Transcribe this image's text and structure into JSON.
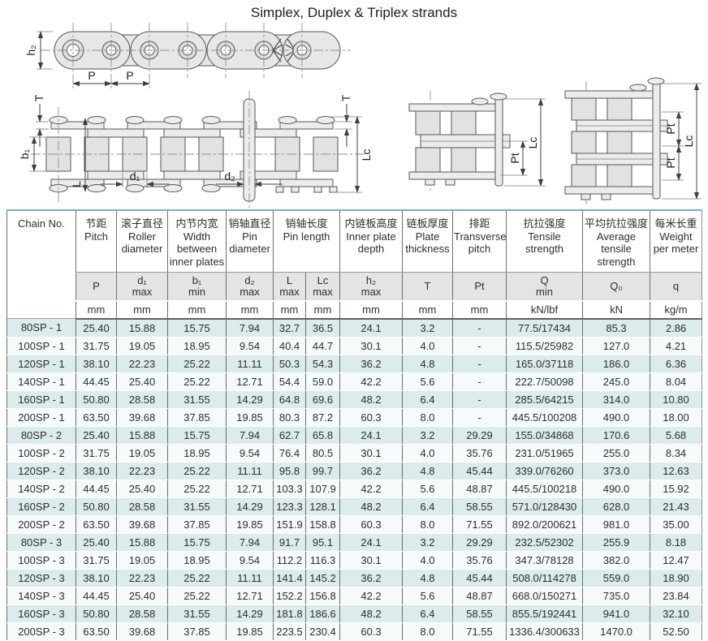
{
  "page": {
    "title": "Simplex, Duplex & Triplex strands"
  },
  "drawings": {
    "side_view": {
      "h2": "h₂",
      "p1": "P",
      "p2": "P"
    },
    "plan_view": {
      "t_left": "T",
      "t_right": "T",
      "b1": "b₁",
      "l": "L",
      "d1": "d₁",
      "d2": "d₂",
      "lc": "Lc"
    },
    "duplex_view": {
      "pt": "Pt",
      "lc": "Lc"
    },
    "triplex_view": {
      "pt1": "Pt",
      "pt2": "Pt",
      "lc": "Lc"
    }
  },
  "table": {
    "corner_label": "Chain No.",
    "col_headers": [
      {
        "cn": "节距",
        "en": "Pitch",
        "sym": "P",
        "qual": "",
        "unit": "mm"
      },
      {
        "cn": "滚子直径",
        "en": "Roller diameter",
        "sym": "d₁",
        "qual": "max",
        "unit": "mm"
      },
      {
        "cn": "内节内宽",
        "en": "Width between inner plates",
        "sym": "b₁",
        "qual": "min",
        "unit": "mm"
      },
      {
        "cn": "销轴直径",
        "en": "Pin diameter",
        "sym": "d₂",
        "qual": "max",
        "unit": "mm"
      },
      {
        "cn": "销轴长度",
        "en": "Pin length",
        "sym": "L",
        "qual": "max",
        "unit": "mm",
        "sym2": "Lc",
        "qual2": "max",
        "unit2": "mm"
      },
      {
        "cn": "内链板高度",
        "en": "Inner plate depth",
        "sym": "h₂",
        "qual": "max",
        "unit": "mm"
      },
      {
        "cn": "链板厚度",
        "en": "Plate thickness",
        "sym": "T",
        "qual": "",
        "unit": "mm"
      },
      {
        "cn": "排距",
        "en": "Transverse pitch",
        "sym": "Pt",
        "qual": "",
        "unit": "mm"
      },
      {
        "cn": "抗拉强度",
        "en": "Tensile strength",
        "sym": "Q",
        "qual": "min",
        "unit": "kN/lbf"
      },
      {
        "cn": "平均抗拉强度",
        "en": "Average tensile strength",
        "sym": "Q₀",
        "qual": "",
        "unit": "kN"
      },
      {
        "cn": "每米长重",
        "en": "Weight per meter",
        "sym": "q",
        "qual": "",
        "unit": "kg/m"
      }
    ],
    "rows": [
      [
        "80SP - 1",
        "25.40",
        "15.88",
        "15.75",
        "7.94",
        "32.7",
        "36.5",
        "24.1",
        "3.2",
        "-",
        "77.5/17434",
        "85.3",
        "2.86"
      ],
      [
        "100SP - 1",
        "31.75",
        "19.05",
        "18.95",
        "9.54",
        "40.4",
        "44.7",
        "30.1",
        "4.0",
        "-",
        "115.5/25982",
        "127.0",
        "4.21"
      ],
      [
        "120SP - 1",
        "38.10",
        "22.23",
        "25.22",
        "11.11",
        "50.3",
        "54.3",
        "36.2",
        "4.8",
        "-",
        "165.0/37118",
        "186.0",
        "6.36"
      ],
      [
        "140SP - 1",
        "44.45",
        "25.40",
        "25.22",
        "12.71",
        "54.4",
        "59.0",
        "42.2",
        "5.6",
        "-",
        "222.7/50098",
        "245.0",
        "8.04"
      ],
      [
        "160SP - 1",
        "50.80",
        "28.58",
        "31.55",
        "14.29",
        "64.8",
        "69.6",
        "48.2",
        "6.4",
        "-",
        "285.5/64215",
        "314.0",
        "10.80"
      ],
      [
        "200SP - 1",
        "63.50",
        "39.68",
        "37.85",
        "19.85",
        "80.3",
        "87.2",
        "60.3",
        "8.0",
        "-",
        "445.5/100208",
        "490.0",
        "18.00"
      ],
      [
        "80SP - 2",
        "25.40",
        "15.88",
        "15.75",
        "7.94",
        "62.7",
        "65.8",
        "24.1",
        "3.2",
        "29.29",
        "155.0/34868",
        "170.6",
        "5.68"
      ],
      [
        "100SP - 2",
        "31.75",
        "19.05",
        "18.95",
        "9.54",
        "76.4",
        "80.5",
        "30.1",
        "4.0",
        "35.76",
        "231.0/51965",
        "255.0",
        "8.34"
      ],
      [
        "120SP - 2",
        "38.10",
        "22.23",
        "25.22",
        "11.11",
        "95.8",
        "99.7",
        "36.2",
        "4.8",
        "45.44",
        "339.0/76260",
        "373.0",
        "12.63"
      ],
      [
        "140SP - 2",
        "44.45",
        "25.40",
        "25.22",
        "12.71",
        "103.3",
        "107.9",
        "42.2",
        "5.6",
        "48.87",
        "445.5/100218",
        "490.0",
        "15.92"
      ],
      [
        "160SP - 2",
        "50.80",
        "28.58",
        "31.55",
        "14.29",
        "123.3",
        "128.1",
        "48.2",
        "6.4",
        "58.55",
        "571.0/128430",
        "628.0",
        "21.43"
      ],
      [
        "200SP - 2",
        "63.50",
        "39.68",
        "37.85",
        "19.85",
        "151.9",
        "158.8",
        "60.3",
        "8.0",
        "71.55",
        "892.0/200621",
        "981.0",
        "35.00"
      ],
      [
        "80SP - 3",
        "25.40",
        "15.88",
        "15.75",
        "7.94",
        "91.7",
        "95.1",
        "24.1",
        "3.2",
        "29.29",
        "232.5/52302",
        "255.9",
        "8.18"
      ],
      [
        "100SP - 3",
        "31.75",
        "19.05",
        "18.95",
        "9.54",
        "112.2",
        "116.3",
        "30.1",
        "4.0",
        "35.76",
        "347.3/78128",
        "382.0",
        "12.47"
      ],
      [
        "120SP - 3",
        "38.10",
        "22.23",
        "25.22",
        "11.11",
        "141.4",
        "145.2",
        "36.2",
        "4.8",
        "45.44",
        "508.0/114278",
        "559.0",
        "18.90"
      ],
      [
        "140SP - 3",
        "44.45",
        "25.40",
        "25.22",
        "12.71",
        "152.2",
        "156.8",
        "42.2",
        "5.6",
        "48.87",
        "668.0/150271",
        "735.0",
        "23.84"
      ],
      [
        "160SP - 3",
        "50.80",
        "28.58",
        "31.55",
        "14.29",
        "181.8",
        "186.6",
        "48.2",
        "6.4",
        "58.55",
        "855.5/192441",
        "941.0",
        "32.10"
      ],
      [
        "200SP - 3",
        "63.50",
        "39.68",
        "37.85",
        "19.85",
        "223.5",
        "230.4",
        "60.3",
        "8.0",
        "71.55",
        "1336.4/300633",
        "1470.0",
        "52.50"
      ]
    ]
  }
}
